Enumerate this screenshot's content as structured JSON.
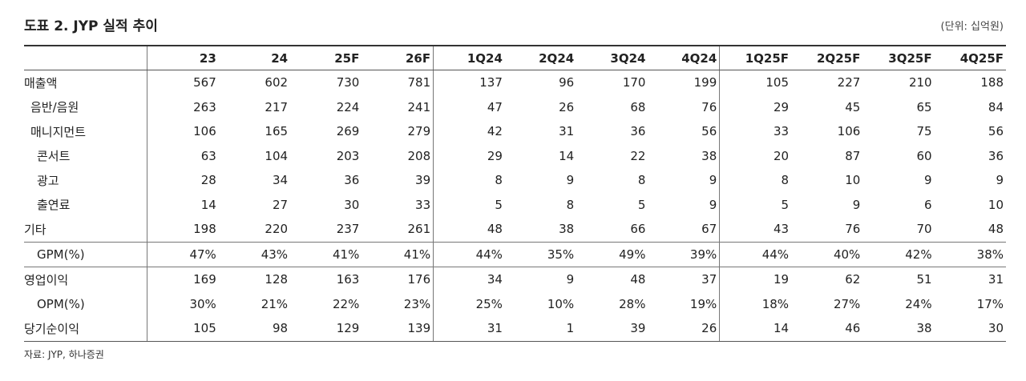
{
  "header": {
    "title": "도표 2. JYP 실적 추이",
    "unit": "(단위: 십억원)"
  },
  "table": {
    "columns": [
      "23",
      "24",
      "25F",
      "26F",
      "1Q24",
      "2Q24",
      "3Q24",
      "4Q24",
      "1Q25F",
      "2Q25F",
      "3Q25F",
      "4Q25F"
    ],
    "rows": [
      {
        "label": "매출액",
        "values": [
          567,
          602,
          730,
          781,
          137,
          96,
          170,
          199,
          105,
          227,
          210,
          188
        ]
      },
      {
        "label": "음반/음원",
        "values": [
          263,
          217,
          224,
          241,
          47,
          26,
          68,
          76,
          29,
          45,
          65,
          84
        ]
      },
      {
        "label": "매니지먼트",
        "values": [
          106,
          165,
          269,
          279,
          42,
          31,
          36,
          56,
          33,
          106,
          75,
          56
        ]
      },
      {
        "label": "콘서트",
        "values": [
          63,
          104,
          203,
          208,
          29,
          14,
          22,
          38,
          20,
          87,
          60,
          36
        ]
      },
      {
        "label": "광고",
        "values": [
          28,
          34,
          36,
          39,
          8,
          9,
          8,
          9,
          8,
          10,
          9,
          9
        ]
      },
      {
        "label": "출연료",
        "values": [
          14,
          27,
          30,
          33,
          5,
          8,
          5,
          9,
          5,
          9,
          6,
          10
        ]
      },
      {
        "label": "기타",
        "values": [
          198,
          220,
          237,
          261,
          48,
          38,
          66,
          67,
          43,
          76,
          70,
          48
        ]
      },
      {
        "label": "GPM(%)",
        "values": [
          "47%",
          "43%",
          "41%",
          "41%",
          "44%",
          "35%",
          "49%",
          "39%",
          "44%",
          "40%",
          "42%",
          "38%"
        ]
      },
      {
        "label": "영업이익",
        "values": [
          169,
          128,
          163,
          176,
          34,
          9,
          48,
          37,
          19,
          62,
          51,
          31
        ]
      },
      {
        "label": "OPM(%)",
        "values": [
          "30%",
          "21%",
          "22%",
          "23%",
          "25%",
          "10%",
          "28%",
          "19%",
          "18%",
          "27%",
          "24%",
          "17%"
        ]
      },
      {
        "label": "당기순이익",
        "values": [
          105,
          98,
          129,
          139,
          31,
          1,
          39,
          26,
          14,
          46,
          38,
          30
        ]
      }
    ]
  },
  "source": "자료: JYP, 하나증권"
}
